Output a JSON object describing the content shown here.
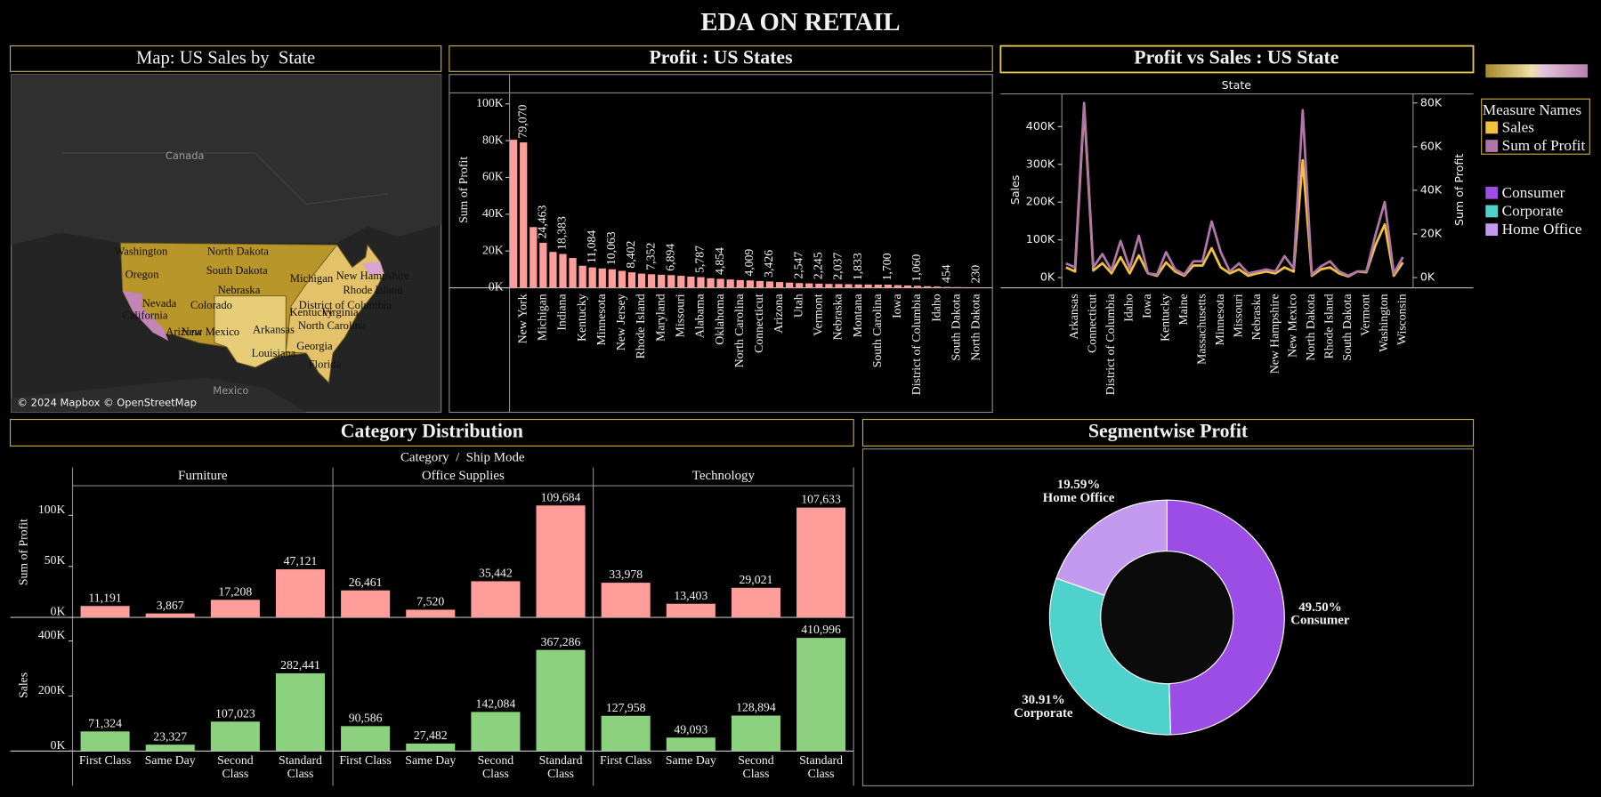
{
  "title": "EDA ON RETAIL",
  "chart_data": [
    {
      "type": "map",
      "title": "Map: US Sales by  State",
      "labels": [
        "Washington",
        "North Dakota",
        "Oregon",
        "South Dakota",
        "Michigan",
        "New Hampshire",
        "Rhode Island",
        "Nebraska",
        "Nevada",
        "Colorado",
        "District of Columbia",
        "California",
        "Kentucky",
        "Virginia",
        "Arizona",
        "New Mexico",
        "Arkansas",
        "North Carolina",
        "Louisiana",
        "Georgia",
        "Florida"
      ],
      "places": [
        "Canada",
        "Mexico"
      ],
      "attribution": "© 2024 Mapbox © OpenStreetMap"
    },
    {
      "type": "bar",
      "title": "Profit : US States",
      "y_label": "Sum of Profit",
      "color": "#ff9d9a",
      "categories": [
        null,
        "New York",
        null,
        "Michigan",
        null,
        "Indiana",
        null,
        "Kentucky",
        null,
        "Minnesota",
        null,
        "New Jersey",
        null,
        "Rhode Island",
        null,
        "Maryland",
        null,
        "Missouri",
        null,
        "Alabama",
        null,
        "Oklahoma",
        null,
        "North Carolina",
        null,
        "Connecticut",
        null,
        "Arizona",
        null,
        "Utah",
        null,
        "Vermont",
        null,
        "Nebraska",
        null,
        "Montana",
        null,
        "South Carolina",
        null,
        "Iowa",
        null,
        "District of Columbia",
        null,
        "Idaho",
        null,
        "South Dakota",
        null,
        "North Dakota"
      ],
      "values": [
        80500,
        79070,
        33000,
        24463,
        19500,
        18383,
        16200,
        12000,
        11084,
        10500,
        10063,
        9200,
        8402,
        7700,
        7352,
        7100,
        6894,
        6500,
        6100,
        5787,
        5200,
        4854,
        4500,
        4200,
        4009,
        3700,
        3426,
        3100,
        2800,
        2547,
        2400,
        2245,
        2100,
        2037,
        1950,
        1833,
        1780,
        1740,
        1700,
        1450,
        1250,
        1060,
        850,
        650,
        454,
        380,
        300,
        230
      ],
      "value_labels": [
        null,
        "79,070",
        null,
        "24,463",
        null,
        "18,383",
        null,
        null,
        "11,084",
        null,
        "10,063",
        null,
        "8,402",
        null,
        "7,352",
        null,
        "6,894",
        null,
        null,
        "5,787",
        null,
        "4,854",
        null,
        null,
        "4,009",
        null,
        "3,426",
        null,
        null,
        "2,547",
        null,
        "2,245",
        null,
        "2,037",
        null,
        "1,833",
        null,
        null,
        "1,700",
        null,
        null,
        "1,060",
        null,
        null,
        "454",
        null,
        null,
        "230"
      ],
      "ylim": [
        0,
        106000
      ],
      "yticks": [
        {
          "value": 0,
          "label": "0K"
        },
        {
          "value": 20000,
          "label": "20K"
        },
        {
          "value": 40000,
          "label": "40K"
        },
        {
          "value": 60000,
          "label": "60K"
        },
        {
          "value": 80000,
          "label": "80K"
        },
        {
          "value": 100000,
          "label": "100K"
        }
      ]
    },
    {
      "type": "line",
      "title": "Profit vs Sales : US State",
      "x_label": "State",
      "y_label": "Sales",
      "y2_label": "Sum of Profit",
      "legend_title": "Measure Names",
      "categories": [
        null,
        "Arkansas",
        null,
        "Connecticut",
        null,
        "District of Columbia",
        null,
        "Idaho",
        null,
        "Iowa",
        null,
        "Kentucky",
        null,
        "Maine",
        null,
        "Massachusetts",
        null,
        "Minnesota",
        null,
        "Missouri",
        null,
        "Nebraska",
        null,
        "New Hampshire",
        null,
        "New Mexico",
        null,
        "North Dakota",
        null,
        "Rhode Island",
        null,
        "South Dakota",
        null,
        "Vermont",
        null,
        "Washington",
        null,
        "Wisconsin"
      ],
      "series": [
        {
          "name": "Sales",
          "color": "#f2c23c",
          "values": [
            27000,
            16000,
            451000,
            19000,
            38000,
            11000,
            54000,
            11000,
            59000,
            11000,
            5000,
            40000,
            16000,
            5000,
            32000,
            32000,
            78000,
            27000,
            11000,
            22000,
            5000,
            11000,
            16000,
            11000,
            27000,
            16000,
            311000,
            5000,
            22000,
            27000,
            11000,
            3000,
            16000,
            14000,
            86000,
            141000,
            5000,
            40000
          ]
        },
        {
          "name": "Sum of Profit",
          "color": "#b076a8",
          "axis": "y2",
          "values": [
            6500,
            4700,
            80000,
            4700,
            10800,
            3300,
            16800,
            4200,
            19200,
            1900,
            1400,
            11700,
            3700,
            1400,
            7500,
            7500,
            25700,
            11700,
            2800,
            6500,
            1900,
            2800,
            3700,
            2800,
            9800,
            4200,
            76700,
            1400,
            5100,
            7500,
            2800,
            900,
            2800,
            2800,
            19600,
            34600,
            1900,
            9400
          ]
        }
      ],
      "ylim": [
        0,
        484000
      ],
      "yticks": [
        {
          "value": 0,
          "label": "0K"
        },
        {
          "value": 100000,
          "label": "100K"
        },
        {
          "value": 200000,
          "label": "200K"
        },
        {
          "value": 300000,
          "label": "300K"
        },
        {
          "value": 400000,
          "label": "400K"
        }
      ],
      "y2lim": [
        0,
        83700
      ],
      "y2ticks": [
        {
          "value": 0,
          "label": "0K"
        },
        {
          "value": 20000,
          "label": "20K"
        },
        {
          "value": 40000,
          "label": "40K"
        },
        {
          "value": 60000,
          "label": "60K"
        },
        {
          "value": 80000,
          "label": "80K"
        }
      ]
    },
    {
      "type": "bar_panels",
      "title": "Category Distribution",
      "header": "Category  /  Ship Mode",
      "panels": [
        "Furniture",
        "Office Supplies",
        "Technology"
      ],
      "categories": [
        "First Class",
        "Same Day",
        "Second Class",
        "Standard Class"
      ],
      "rows": [
        {
          "name": "Sum of Profit",
          "color": "#ff9d9a",
          "ylim": [
            0,
            128000
          ],
          "yticks": [
            {
              "value": 0,
              "label": "0K"
            },
            {
              "value": 50000,
              "label": "50K"
            },
            {
              "value": 100000,
              "label": "100K"
            }
          ],
          "values": [
            [
              11191,
              3867,
              17208,
              47121
            ],
            [
              26461,
              7520,
              35442,
              109684
            ],
            [
              33978,
              13403,
              29021,
              107633
            ]
          ],
          "value_labels": [
            [
              "11,191",
              "3,867",
              "17,208",
              "47,121"
            ],
            [
              "26,461",
              "7,520",
              "35,442",
              "109,684"
            ],
            [
              "33,978",
              "13,403",
              "29,021",
              "107,633"
            ]
          ]
        },
        {
          "name": "Sales",
          "color": "#8cd17d",
          "ylim": [
            0,
            478000
          ],
          "yticks": [
            {
              "value": 0,
              "label": "0K"
            },
            {
              "value": 200000,
              "label": "200K"
            },
            {
              "value": 400000,
              "label": "400K"
            }
          ],
          "values": [
            [
              71324,
              23327,
              107023,
              282441
            ],
            [
              90586,
              27482,
              142084,
              367286
            ],
            [
              127958,
              49093,
              128894,
              410996
            ]
          ],
          "value_labels": [
            [
              "71,324",
              "23,327",
              "107,023",
              "282,441"
            ],
            [
              "90,586",
              "27,482",
              "142,084",
              "367,286"
            ],
            [
              "127,958",
              "49,093",
              "128,894",
              "410,996"
            ]
          ]
        }
      ]
    },
    {
      "type": "donut",
      "title": "Segmentwise Profit",
      "categories": [
        "Consumer",
        "Corporate",
        "Home Office"
      ],
      "values": [
        49.5,
        30.91,
        19.59
      ],
      "value_labels": [
        "49.50%",
        "30.91%",
        "19.59%"
      ],
      "colors": [
        "#9b4de6",
        "#4fd2cc",
        "#c39af0"
      ]
    }
  ]
}
